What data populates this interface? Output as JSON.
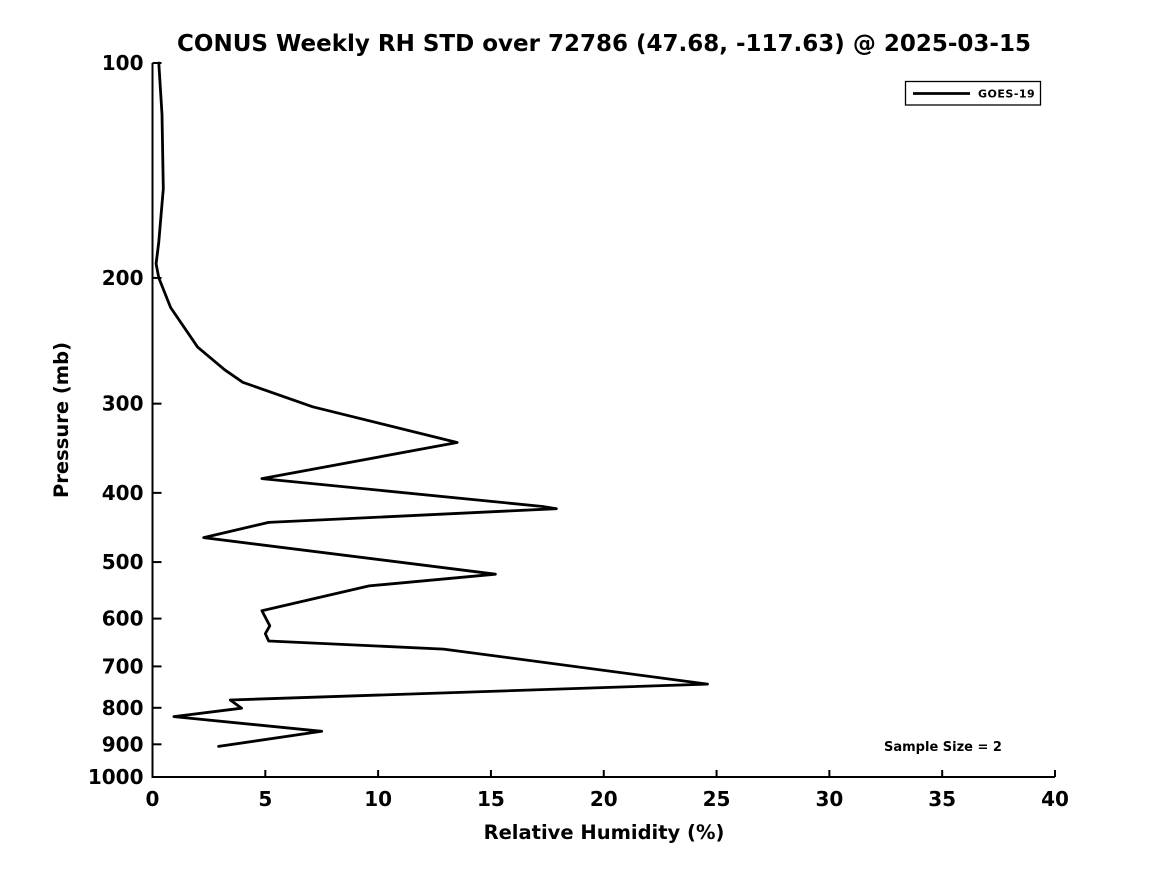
{
  "chart_data": {
    "type": "line",
    "title": "CONUS Weekly RH STD over 72786 (47.68, -117.63) @ 2025-03-15",
    "xlabel": "Relative Humidity (%)",
    "ylabel": "Pressure (mb)",
    "annotation": "Sample Size = 2",
    "legend": [
      "GOES-19"
    ],
    "legend_position": "upper right",
    "grid": false,
    "x_ticks": [
      0,
      5,
      10,
      15,
      20,
      25,
      30,
      35,
      40
    ],
    "y_ticks": [
      100,
      200,
      300,
      400,
      500,
      600,
      700,
      800,
      900,
      1000
    ],
    "xlim": [
      0,
      40
    ],
    "ylim": [
      1000,
      100
    ],
    "y_scale": "log",
    "line_color": "#000000",
    "background_color": "#ffffff",
    "point_format": [
      "pressure_mb",
      "rh_std_pct"
    ],
    "series": [
      {
        "name": "GOES-19",
        "points": [
          [
            100,
            0.28
          ],
          [
            118,
            0.42
          ],
          [
            150,
            0.48
          ],
          [
            178,
            0.28
          ],
          [
            191,
            0.16
          ],
          [
            200,
            0.28
          ],
          [
            220,
            0.8
          ],
          [
            250,
            2.0
          ],
          [
            269,
            3.2
          ],
          [
            280,
            4.0
          ],
          [
            303,
            7.1
          ],
          [
            340,
            13.5
          ],
          [
            382,
            4.85
          ],
          [
            418,
            17.3
          ],
          [
            421,
            17.9
          ],
          [
            440,
            5.15
          ],
          [
            462,
            2.27
          ],
          [
            520,
            15.2
          ],
          [
            540,
            9.6
          ],
          [
            585,
            4.85
          ],
          [
            614,
            5.2
          ],
          [
            630,
            5.0
          ],
          [
            645,
            5.15
          ],
          [
            662,
            12.9
          ],
          [
            741,
            24.6
          ],
          [
            780,
            3.45
          ],
          [
            801,
            3.95
          ],
          [
            823,
            0.95
          ],
          [
            863,
            7.5
          ],
          [
            906,
            2.93
          ]
        ]
      }
    ]
  }
}
